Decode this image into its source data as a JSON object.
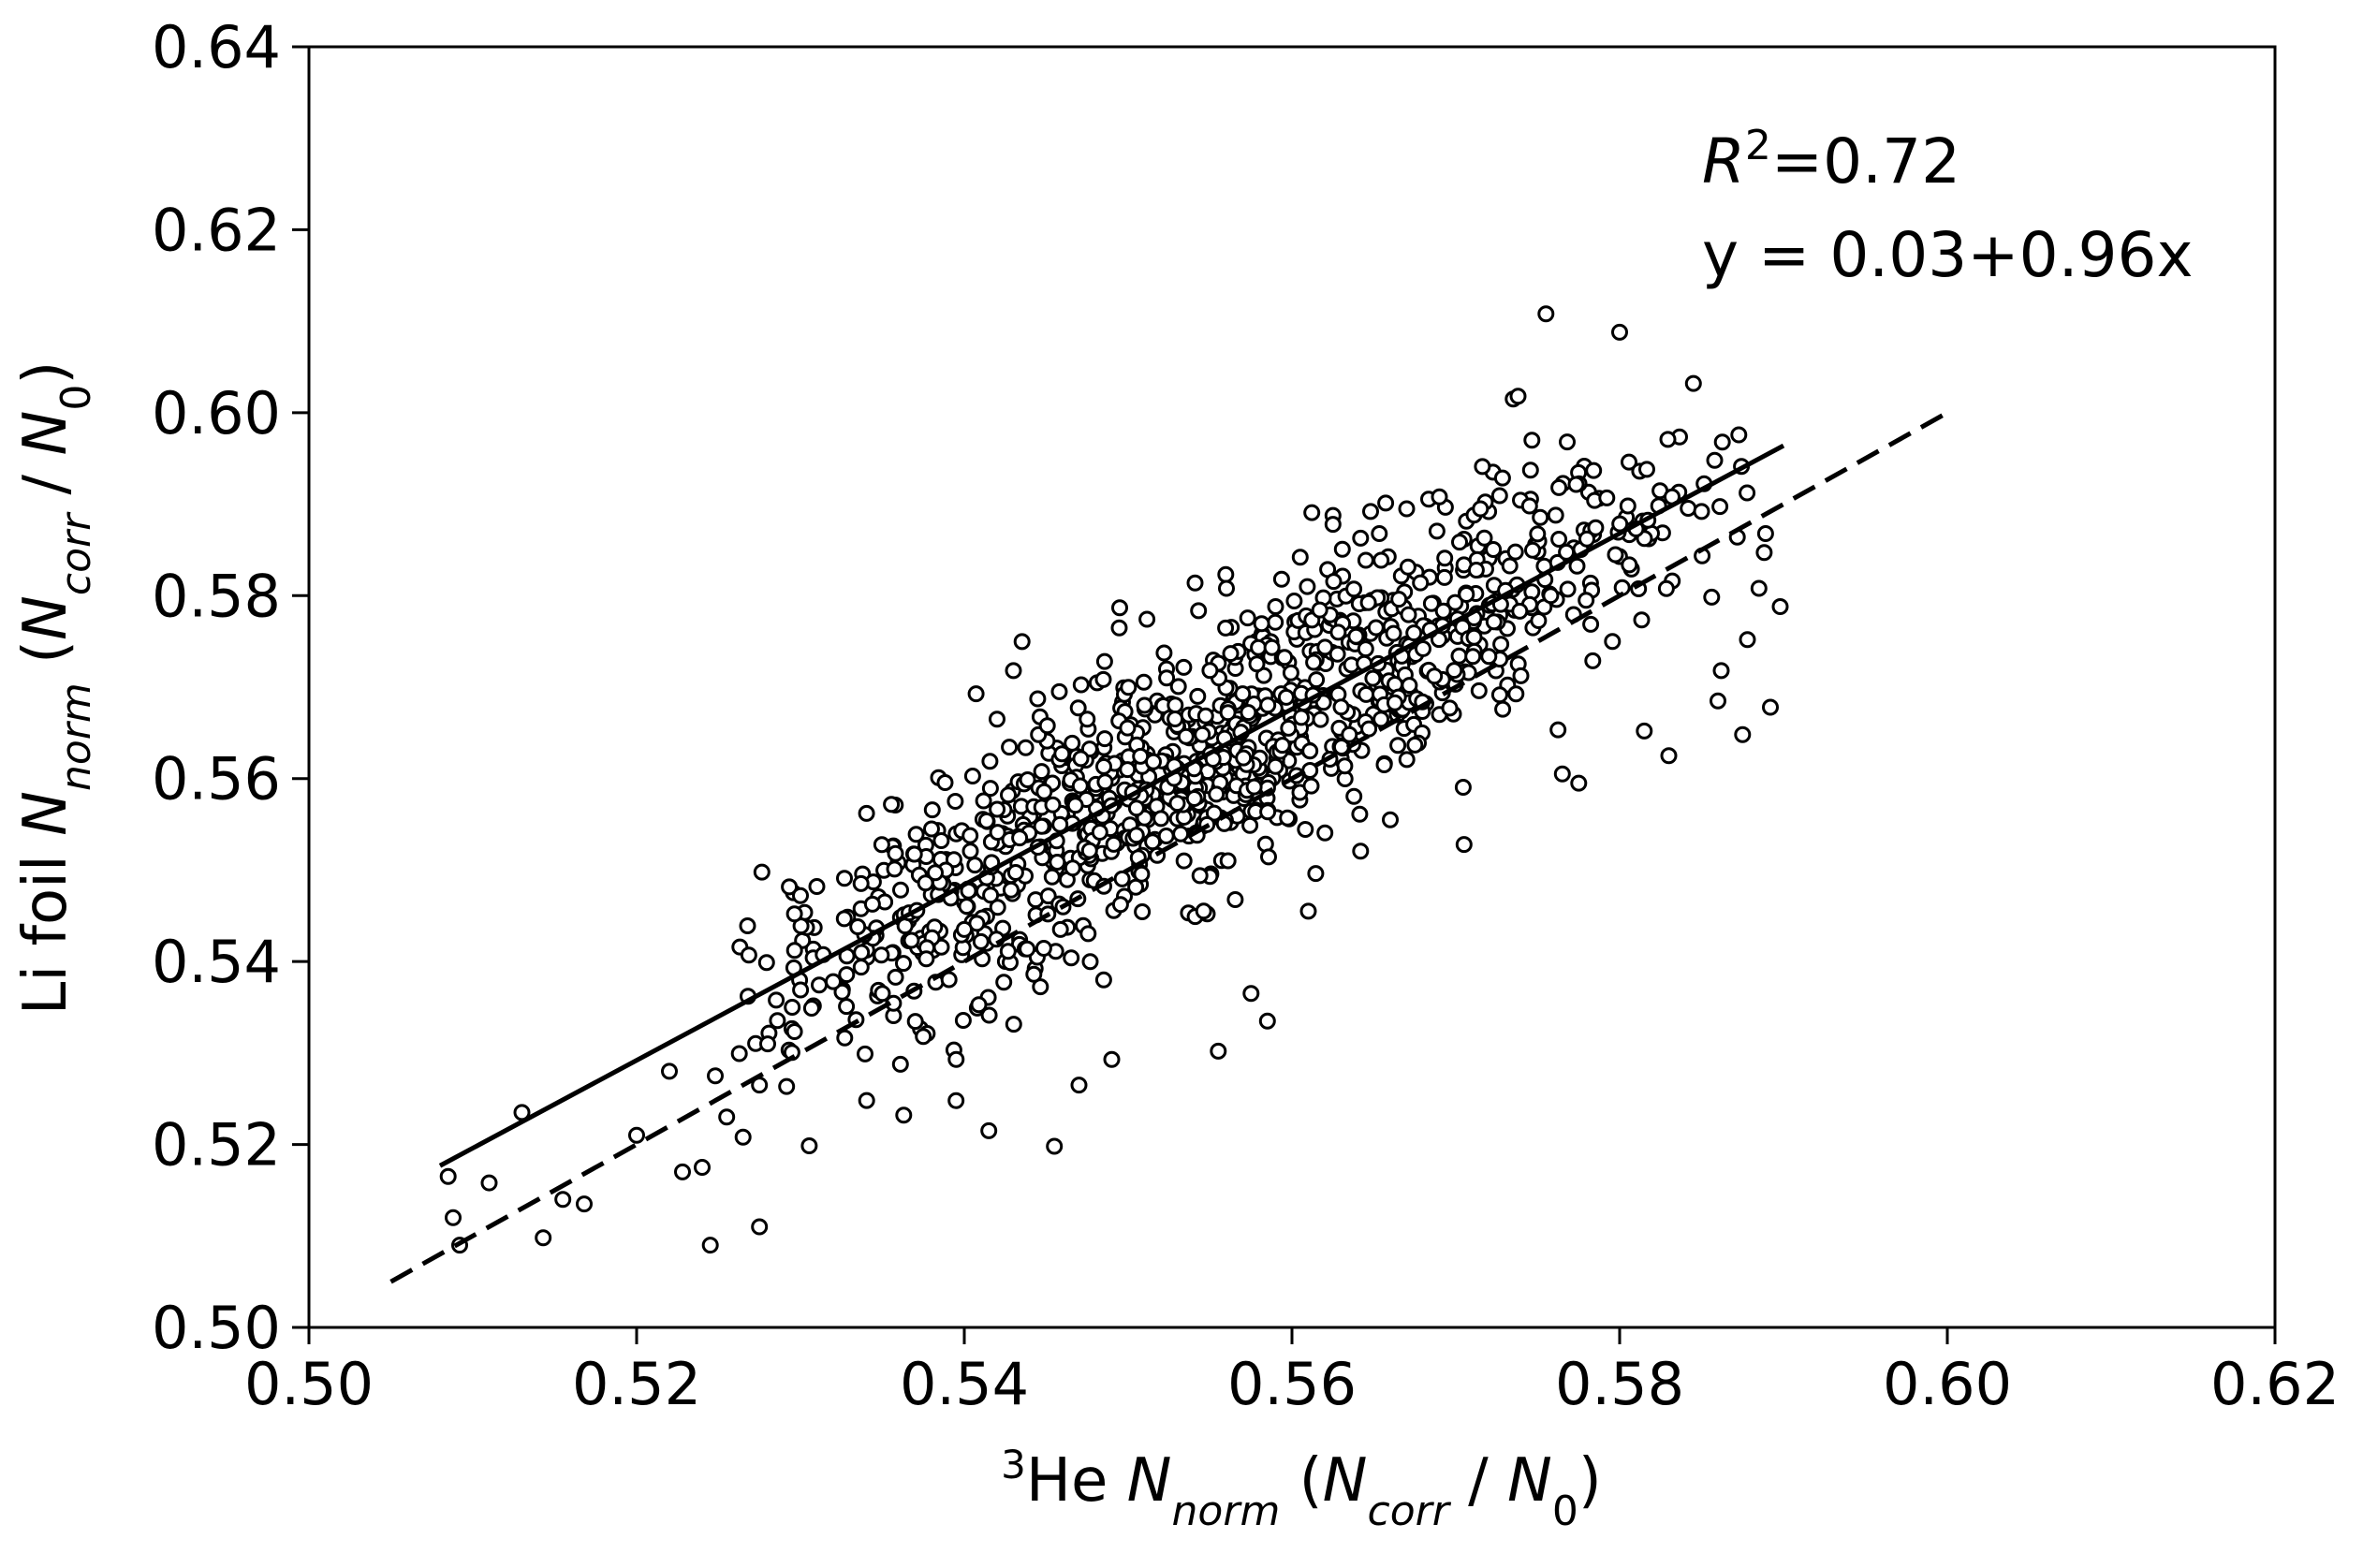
{
  "chart_data": {
    "type": "scatter",
    "title": "",
    "xlabel": {
      "sup": "3",
      "main": "He ",
      "n": "N",
      "n_sub": "norm",
      "paren_open": " (",
      "nc": "N",
      "nc_sub": "corr",
      "slash": " / ",
      "n0": "N",
      "n0_sub": "0",
      "paren_close": ")"
    },
    "ylabel": {
      "main": "Li foil ",
      "n": "N",
      "n_sub": "norm",
      "paren_open": " (",
      "nc": "N",
      "nc_sub": "corr",
      "slash": " / ",
      "n0": "N",
      "n0_sub": "0",
      "paren_close": ")"
    },
    "xlim": [
      0.5,
      0.62
    ],
    "ylim": [
      0.5,
      0.64
    ],
    "xticks": [
      "0.50",
      "0.52",
      "0.54",
      "0.56",
      "0.58",
      "0.60",
      "0.62"
    ],
    "yticks": [
      "0.50",
      "0.52",
      "0.54",
      "0.56",
      "0.58",
      "0.60",
      "0.62",
      "0.64"
    ],
    "grid": false,
    "annotations": {
      "r2_symbol": "R",
      "r2_sup": "2",
      "r2_value": "=0.72",
      "fit_equation": "y = 0.03+0.96x"
    },
    "fit_line": {
      "intercept": 0.03,
      "slope": 0.96,
      "x_range": [
        0.508,
        0.59
      ],
      "style": "solid"
    },
    "identity_line": {
      "x_range": [
        0.505,
        0.6
      ],
      "style": "dashed"
    },
    "points_listed": [
      [
        0.5085,
        0.5165
      ],
      [
        0.5088,
        0.512
      ],
      [
        0.5092,
        0.509
      ],
      [
        0.511,
        0.5158
      ],
      [
        0.513,
        0.5235
      ],
      [
        0.5143,
        0.5098
      ],
      [
        0.5155,
        0.514
      ],
      [
        0.5168,
        0.5135
      ],
      [
        0.52,
        0.521
      ],
      [
        0.522,
        0.528
      ],
      [
        0.5228,
        0.517
      ],
      [
        0.524,
        0.5175
      ],
      [
        0.5245,
        0.509
      ],
      [
        0.5248,
        0.5275
      ],
      [
        0.5255,
        0.523
      ],
      [
        0.5265,
        0.5208
      ],
      [
        0.5275,
        0.511
      ],
      [
        0.5275,
        0.5265
      ],
      [
        0.528,
        0.531
      ],
      [
        0.5268,
        0.5362
      ],
      [
        0.5295,
        0.535
      ],
      [
        0.53,
        0.5472
      ],
      [
        0.531,
        0.5482
      ],
      [
        0.532,
        0.5378
      ],
      [
        0.5335,
        0.5438
      ],
      [
        0.535,
        0.5365
      ],
      [
        0.5358,
        0.5518
      ],
      [
        0.5363,
        0.5232
      ],
      [
        0.5375,
        0.5318
      ],
      [
        0.538,
        0.5545
      ],
      [
        0.5395,
        0.5248
      ],
      [
        0.54,
        0.5435
      ],
      [
        0.5415,
        0.5215
      ],
      [
        0.542,
        0.5665
      ],
      [
        0.543,
        0.5718
      ],
      [
        0.5445,
        0.5525
      ],
      [
        0.5455,
        0.5198
      ],
      [
        0.5458,
        0.5695
      ],
      [
        0.547,
        0.5265
      ],
      [
        0.5475,
        0.5665
      ],
      [
        0.549,
        0.5293
      ],
      [
        0.5505,
        0.5538
      ],
      [
        0.551,
        0.568
      ],
      [
        0.553,
        0.5573
      ],
      [
        0.5555,
        0.5302
      ],
      [
        0.556,
        0.5808
      ],
      [
        0.5575,
        0.5365
      ],
      [
        0.5585,
        0.5335
      ],
      [
        0.559,
        0.5788
      ],
      [
        0.5605,
        0.5842
      ],
      [
        0.561,
        0.5455
      ],
      [
        0.5625,
        0.5878
      ],
      [
        0.5635,
        0.5648
      ],
      [
        0.5648,
        0.5892
      ],
      [
        0.566,
        0.5555
      ],
      [
        0.567,
        0.5895
      ],
      [
        0.568,
        0.5742
      ],
      [
        0.569,
        0.5908
      ],
      [
        0.5705,
        0.5528
      ],
      [
        0.5715,
        0.5895
      ],
      [
        0.5735,
        0.6015
      ],
      [
        0.5738,
        0.6018
      ],
      [
        0.5745,
        0.5898
      ],
      [
        0.5755,
        0.6108
      ],
      [
        0.5765,
        0.5605
      ],
      [
        0.5768,
        0.5968
      ],
      [
        0.5775,
        0.5595
      ],
      [
        0.578,
        0.5862
      ],
      [
        0.58,
        0.6088
      ],
      [
        0.5805,
        0.5898
      ],
      [
        0.5815,
        0.5652
      ],
      [
        0.583,
        0.5625
      ],
      [
        0.5832,
        0.5908
      ],
      [
        0.5845,
        0.6032
      ],
      [
        0.585,
        0.5892
      ],
      [
        0.5858,
        0.5948
      ],
      [
        0.586,
        0.5685
      ],
      [
        0.5875,
        0.5648
      ],
      [
        0.5885,
        0.5808
      ],
      [
        0.5892,
        0.5678
      ],
      [
        0.5898,
        0.5788
      ],
      [
        0.5878,
        0.5752
      ],
      [
        0.5862,
        0.5718
      ]
    ],
    "dense_cloud": {
      "n": 1080,
      "x_mean": 0.556,
      "x_sd": 0.0142,
      "x_range": [
        0.526,
        0.59
      ],
      "residual_sd": 0.0072
    }
  }
}
